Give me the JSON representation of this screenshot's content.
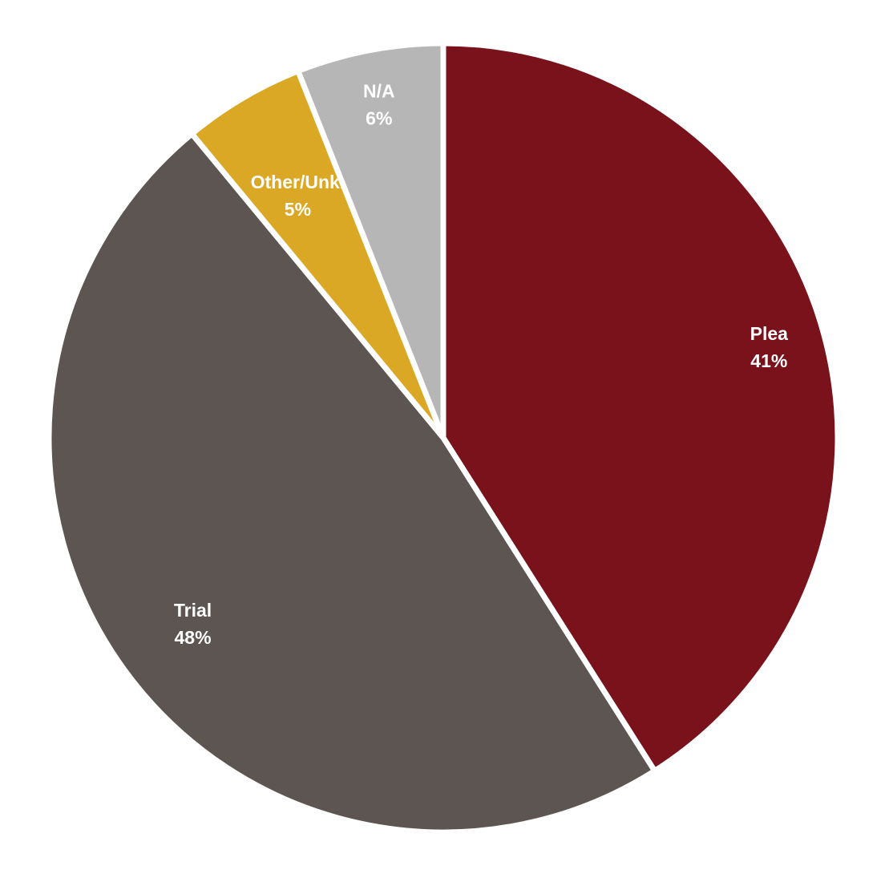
{
  "chart_data": {
    "type": "pie",
    "title": "",
    "slices": [
      {
        "label": "Plea",
        "value": 41,
        "display": "41%",
        "color": "#7a121c"
      },
      {
        "label": "Trial",
        "value": 48,
        "display": "48%",
        "color": "#5c5552"
      },
      {
        "label": "Other/Unk.",
        "value": 5,
        "display": "5%",
        "color": "#daa824"
      },
      {
        "label": "N/A",
        "value": 6,
        "display": "6%",
        "color": "#b6b6b6"
      }
    ],
    "start": "12 o'clock",
    "direction": "clockwise",
    "legend": "none",
    "separator_color": "#ffffff"
  }
}
